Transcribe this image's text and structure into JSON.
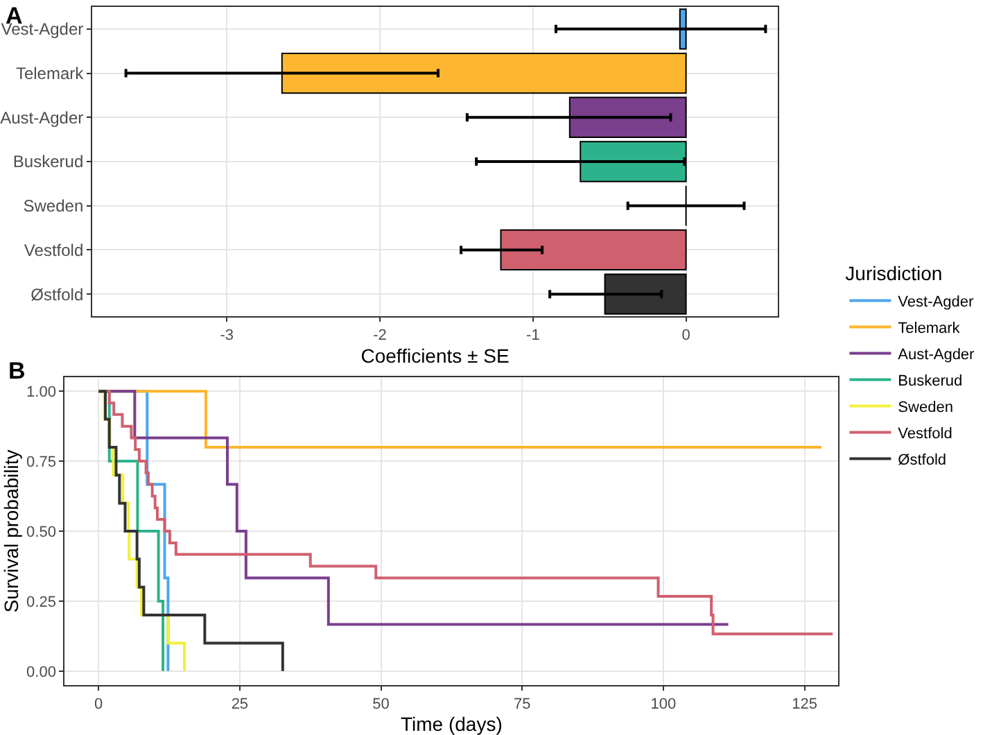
{
  "chart_data": [
    {
      "type": "bar",
      "title": "A",
      "orientation": "horizontal",
      "xlabel": "Coefficients ± SE",
      "categories": [
        "Vest-Agder",
        "Telemark",
        "Aust-Agder",
        "Buskerud",
        "Sweden",
        "Vestfold",
        "Østfold"
      ],
      "values": [
        -0.04,
        -2.64,
        -0.76,
        -0.69,
        0,
        -1.21,
        -0.53
      ],
      "colors": [
        "#4ea6ec",
        "#fdb62f",
        "#7a3f8d",
        "#2db38b",
        "#000000",
        "#d0606e",
        "#333333"
      ],
      "errors": [
        [
          -0.85,
          0.52
        ],
        [
          -3.66,
          -1.62
        ],
        [
          -1.43,
          -0.1
        ],
        [
          -1.37,
          -0.01
        ],
        [
          -0.38,
          0.38
        ],
        [
          -1.47,
          -0.94
        ],
        [
          -0.89,
          -0.16
        ]
      ],
      "xlim": [
        -3.88,
        0.6
      ],
      "xticks": [
        -3,
        -2,
        -1,
        0
      ],
      "grid": true
    },
    {
      "type": "step",
      "title": "B",
      "xlabel": "Time (days)",
      "ylabel": "Survival probability",
      "legend_title": "Jurisdiction",
      "legend": "right",
      "grid": true,
      "xlim": [
        -6,
        131
      ],
      "xticks": [
        0,
        25,
        50,
        75,
        100,
        125
      ],
      "ylim": [
        -0.05,
        1.05
      ],
      "yticks": [
        {
          "value": 0,
          "label": "0.00"
        },
        {
          "value": 0.25,
          "label": "0.25"
        },
        {
          "value": 0.5,
          "label": "0.50"
        },
        {
          "value": 0.75,
          "label": "0.75"
        },
        {
          "value": 1,
          "label": "1.00"
        }
      ],
      "series": [
        {
          "name": "Vest-Agder",
          "color": "#4ea6ec",
          "x": [
            0,
            8.6,
            11.7,
            12.3
          ],
          "values": [
            1,
            0.667,
            0.333,
            0
          ]
        },
        {
          "name": "Telemark",
          "color": "#fdb62f",
          "x": [
            0,
            19,
            128
          ],
          "values": [
            1,
            0.8,
            0.8
          ]
        },
        {
          "name": "Aust-Agder",
          "color": "#7a3f8d",
          "x": [
            0,
            6.4,
            22.8,
            24.5,
            26.1,
            40.7,
            111.5
          ],
          "values": [
            1,
            0.833,
            0.667,
            0.5,
            0.333,
            0.167,
            0.167
          ]
        },
        {
          "name": "Buskerud",
          "color": "#2db38b",
          "x": [
            0,
            1.9,
            6.9,
            10.6,
            11.4
          ],
          "values": [
            1,
            0.75,
            0.5,
            0.25,
            0
          ]
        },
        {
          "name": "Sweden",
          "color": "#f2f03a",
          "x": [
            0,
            1,
            2,
            2.6,
            4.3,
            5.3,
            5.4,
            6.8,
            7.6,
            12.3,
            15.2
          ],
          "values": [
            1,
            0.9,
            0.8,
            0.7,
            0.6,
            0.5,
            0.4,
            0.3,
            0.2,
            0.1,
            0
          ]
        },
        {
          "name": "Vestfold",
          "color": "#d0606e",
          "x": [
            0,
            1.9,
            2.7,
            4.2,
            5.8,
            6.5,
            7.2,
            8.4,
            8.8,
            9.5,
            10,
            10.4,
            11.7,
            12.6,
            13.7,
            37.5,
            49.1,
            99.1,
            108.5,
            108.8,
            130
          ],
          "values": [
            1,
            0.958,
            0.917,
            0.875,
            0.833,
            0.792,
            0.75,
            0.708,
            0.667,
            0.625,
            0.583,
            0.542,
            0.5,
            0.458,
            0.417,
            0.375,
            0.333,
            0.267,
            0.2,
            0.133,
            0.133
          ]
        },
        {
          "name": "Østfold",
          "color": "#333333",
          "x": [
            0,
            1.2,
            1.9,
            3.1,
            3.7,
            4.7,
            6.8,
            7.2,
            8,
            18.8,
            32.6
          ],
          "values": [
            1,
            0.9,
            0.8,
            0.7,
            0.6,
            0.5,
            0.4,
            0.3,
            0.2,
            0.1,
            0
          ]
        }
      ]
    }
  ]
}
